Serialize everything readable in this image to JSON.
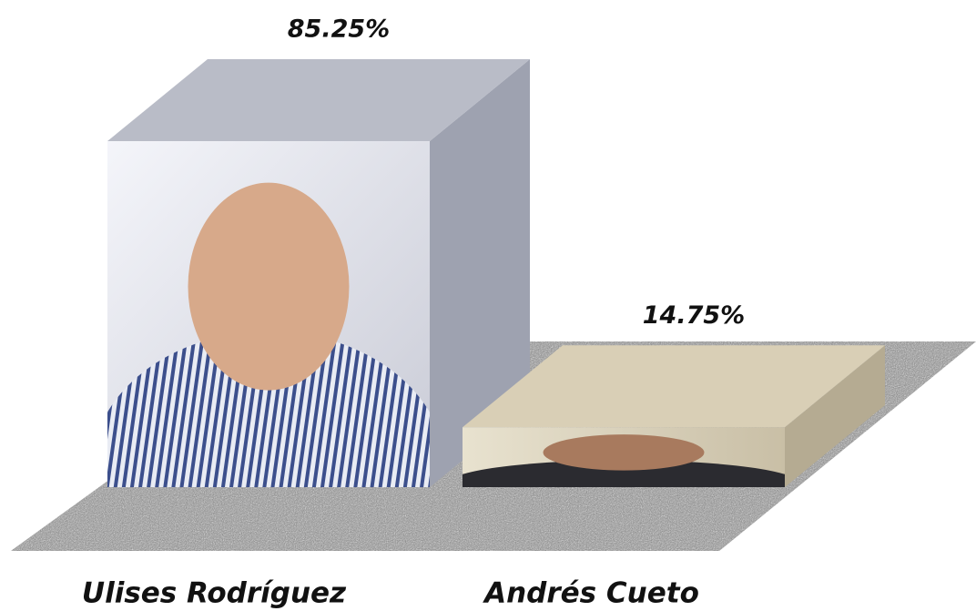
{
  "chart_data": {
    "type": "bar",
    "categories": [
      "Ulises Rodríguez",
      "Andrés Cueto"
    ],
    "values": [
      85.25,
      14.75
    ],
    "value_labels": [
      "85.25%",
      "14.75%"
    ]
  }
}
